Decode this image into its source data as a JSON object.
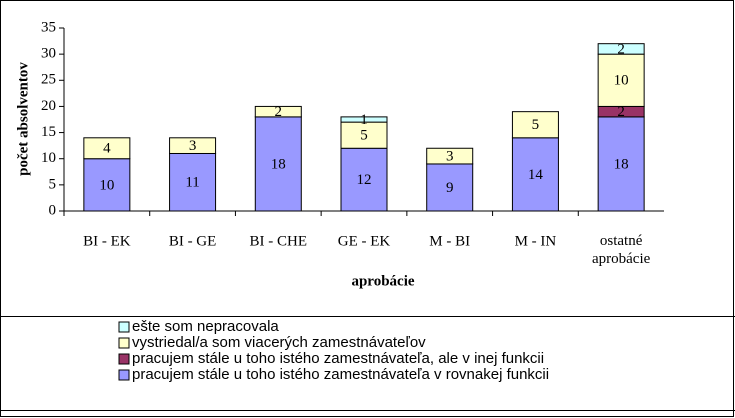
{
  "chart_data": {
    "type": "stacked_bar",
    "categories": [
      "BI - EK",
      "BI - GE",
      "BI - CHE",
      "GE - EK",
      "M - BI",
      "M - IN",
      "ostatné\naprobácie"
    ],
    "series": [
      {
        "name": "pracujem stále u toho istého zamestnávateľa v rovnakej funkcii",
        "color": "#9999ff",
        "values": [
          10,
          11,
          18,
          12,
          9,
          14,
          18
        ]
      },
      {
        "name": "pracujem stále u toho istého zamestnávateľa, ale v inej funkcii",
        "color": "#993366",
        "values": [
          null,
          null,
          null,
          null,
          null,
          null,
          2
        ]
      },
      {
        "name": "vystriedal/a som viacerých zamestnávateľov",
        "color": "#ffffcc",
        "values": [
          4,
          3,
          2,
          5,
          3,
          5,
          10
        ]
      },
      {
        "name": "ešte som nepracovala",
        "color": "#ccffff",
        "values": [
          null,
          null,
          null,
          1,
          null,
          null,
          2
        ]
      }
    ],
    "ylim": [
      0,
      35
    ],
    "yticks": [
      0,
      5,
      10,
      15,
      20,
      25,
      30,
      35
    ],
    "y_label": "počet absolventov",
    "x_label": "aprobácie"
  }
}
